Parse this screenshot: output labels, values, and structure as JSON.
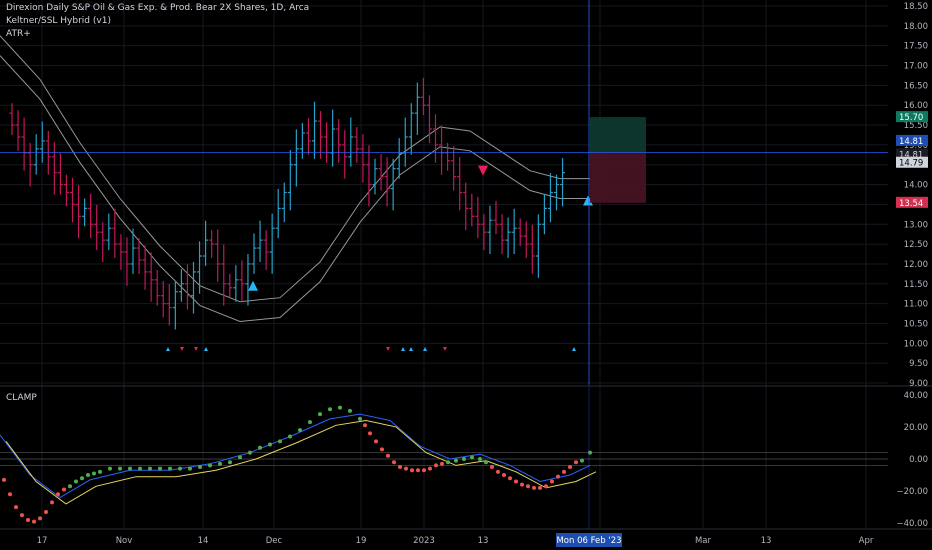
{
  "header": {
    "title": "Direxion Daily S&P Oil & Gas Exp. & Prod. Bear 2X Shares, 1D, Arca",
    "indicator1": "Keltner/SSL Hybrid (v1)",
    "indicator2": "ATR+"
  },
  "price_axis": {
    "ticks": [
      "18.50",
      "18.00",
      "17.50",
      "17.00",
      "16.50",
      "16.00",
      "15.50",
      "15.00",
      "14.50",
      "14.00",
      "13.50",
      "13.00",
      "12.50",
      "12.00",
      "11.50",
      "11.00",
      "10.50",
      "10.00",
      "9.50",
      "9.00"
    ],
    "badges": [
      {
        "label": "15.70",
        "color": "#0d7a5f",
        "text_color": "#ffffff"
      },
      {
        "label": "14.81",
        "color": "#1e4fb0",
        "text_color": "#ffffff"
      },
      {
        "label": "14.81",
        "color": "#1a1d24",
        "text_color": "#d1d4dc"
      },
      {
        "label": "14.79",
        "color": "#d1d4dc",
        "text_color": "#000000"
      },
      {
        "label": "13.54",
        "color": "#d32f4f",
        "text_color": "#ffffff"
      }
    ]
  },
  "clamp_panel": {
    "label": "CLAMP",
    "ticks": [
      "40.00",
      "20.00",
      "0.00",
      "−20.00",
      "−40.00"
    ]
  },
  "time_axis": {
    "labels": [
      "17",
      "Nov",
      "14",
      "Dec",
      "19",
      "2023",
      "13",
      "13",
      "Mar",
      "13",
      "Apr"
    ],
    "crosshair_label": "Mon 06 Feb '23"
  },
  "colors": {
    "bull": "#26a0c8",
    "bear": "#c2185b",
    "signal_up": "#29b6f6",
    "signal_down": "#e91e63",
    "clamp_green": "#4caf50",
    "clamp_red": "#ef5350",
    "band": "#c8c8c8",
    "blue_line": "#2962ff",
    "yellow_line": "#e6d65c",
    "crosshair": "#2962ff"
  },
  "chart_data": {
    "type": "ohlc",
    "symbol": "Direxion Daily S&P Oil & Gas Exp. & Prod. Bear 2X Shares",
    "interval": "1D",
    "y_range": [
      8.9,
      18.6
    ],
    "close_approx": [
      15.5,
      15.2,
      14.8,
      14.5,
      14.9,
      15.1,
      14.7,
      14.3,
      14.0,
      13.8,
      13.5,
      13.2,
      13.4,
      13.0,
      12.8,
      12.6,
      12.9,
      12.5,
      12.3,
      12.0,
      12.4,
      12.1,
      11.8,
      11.6,
      11.2,
      11.0,
      10.9,
      11.3,
      11.5,
      11.2,
      11.8,
      12.2,
      12.6,
      12.5,
      12.0,
      11.5,
      11.4,
      11.6,
      11.5,
      12.0,
      12.4,
      12.6,
      12.3,
      12.9,
      13.4,
      13.8,
      14.5,
      14.9,
      15.3,
      15.1,
      15.6,
      15.2,
      14.8,
      15.4,
      15.0,
      14.7,
      15.2,
      14.9,
      14.5,
      14.0,
      14.4,
      14.2,
      13.9,
      14.4,
      14.8,
      15.2,
      15.8,
      16.2,
      16.0,
      15.4,
      15.0,
      14.8,
      14.6,
      14.2,
      13.8,
      13.4,
      13.2,
      13.0,
      12.8,
      13.1,
      13.0,
      12.6,
      12.8,
      12.9,
      12.7,
      12.5,
      12.2,
      13.0,
      13.4,
      13.8,
      14.0,
      14.3
    ]
  }
}
